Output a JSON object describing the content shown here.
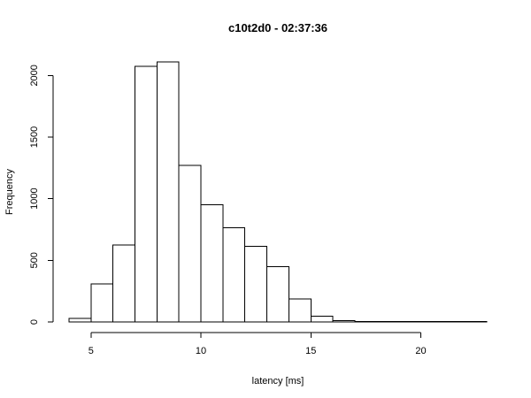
{
  "chart_data": {
    "type": "bar",
    "title": "c10t2d0 - 02:37:36",
    "xlabel": "latency [ms]",
    "ylabel": "Frequency",
    "bin_edges": [
      4,
      5,
      6,
      7,
      8,
      9,
      10,
      11,
      12,
      13,
      14,
      15,
      16,
      17,
      18,
      19,
      20,
      21,
      22,
      23
    ],
    "values": [
      30,
      310,
      625,
      2075,
      2110,
      1270,
      950,
      765,
      615,
      450,
      185,
      45,
      12,
      5,
      3,
      2,
      2,
      2,
      2
    ],
    "xlim": [
      4,
      23
    ],
    "ylim": [
      0,
      2110
    ],
    "x_ticks": [
      5,
      10,
      15,
      20
    ],
    "y_ticks": [
      0,
      500,
      1000,
      1500,
      2000
    ],
    "grid": false
  }
}
